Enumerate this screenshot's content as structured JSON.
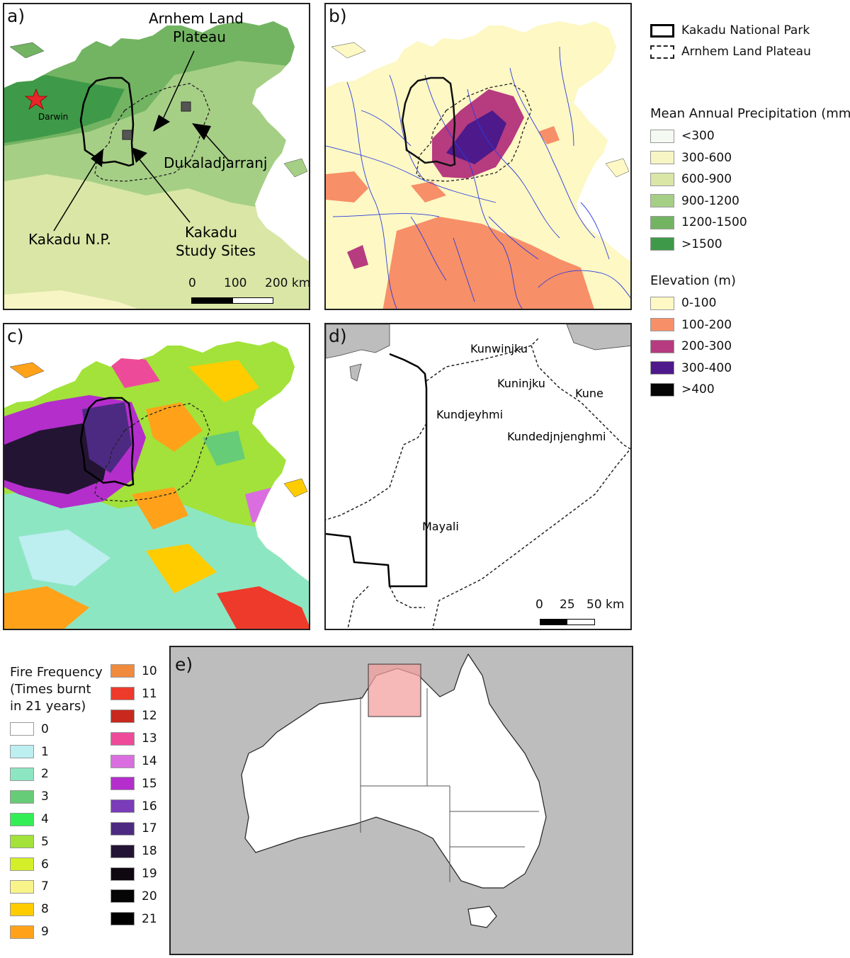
{
  "panels": {
    "a": {
      "label": "a)",
      "annotations": {
        "darwin": "Darwin",
        "arnhem_line1": "Arnhem Land",
        "arnhem_line2": "Plateau",
        "dukaladjarranj": "Dukaladjarranj",
        "kakadu_np": "Kakadu N.P.",
        "study_line1": "Kakadu",
        "study_line2": "Study Sites"
      },
      "scale": {
        "t0": "0",
        "t1": "100",
        "t2": "200 km"
      }
    },
    "b": {
      "label": "b)"
    },
    "c": {
      "label": "c)"
    },
    "d": {
      "label": "d)",
      "annotations": {
        "kunwinjku": "Kunwinjku",
        "kuninjku": "Kuninjku",
        "kune": "Kune",
        "kundjeyhmi": "Kundjeyhmi",
        "kundedjnjenghmi": "Kundedjnjenghmi",
        "mayali": "Mayali"
      },
      "scale": {
        "t0": "0",
        "t1": "25",
        "t2": "50 km"
      }
    },
    "e": {
      "label": "e)"
    }
  },
  "legend_boundaries": {
    "items": [
      {
        "label": "Kakadu National Park",
        "style": "solid"
      },
      {
        "label": "Arnhem Land Plateau",
        "style": "dashed"
      }
    ]
  },
  "legend_precip": {
    "title": "Mean Annual Precipitation (mm)",
    "items": [
      {
        "label": "<300",
        "color": "#f4f9f1"
      },
      {
        "label": "300-600",
        "color": "#f7f5c4"
      },
      {
        "label": "600-900",
        "color": "#d9e6a6"
      },
      {
        "label": "900-1200",
        "color": "#a6cf86"
      },
      {
        "label": "1200-1500",
        "color": "#73b463"
      },
      {
        "label": ">1500",
        "color": "#3e9a48"
      }
    ]
  },
  "legend_elev": {
    "title": "Elevation (m)",
    "items": [
      {
        "label": "0-100",
        "color": "#fdf8c4"
      },
      {
        "label": "100-200",
        "color": "#f78f68"
      },
      {
        "label": "200-300",
        "color": "#b63b7f"
      },
      {
        "label": "300-400",
        "color": "#4e198a"
      },
      {
        "label": ">400",
        "color": "#050505"
      }
    ]
  },
  "legend_fire": {
    "title_line1": "Fire Frequency",
    "title_line2": "(Times burnt",
    "title_line3": "in 21 years)",
    "col1": [
      {
        "label": "0",
        "color": "#ffffff"
      },
      {
        "label": "1",
        "color": "#bdeef0"
      },
      {
        "label": "2",
        "color": "#8de6c2"
      },
      {
        "label": "3",
        "color": "#66cc77"
      },
      {
        "label": "4",
        "color": "#33ee55"
      },
      {
        "label": "5",
        "color": "#a2e23a"
      },
      {
        "label": "6",
        "color": "#d4ef2a"
      },
      {
        "label": "7",
        "color": "#f8f48a"
      },
      {
        "label": "8",
        "color": "#ffcc00"
      },
      {
        "label": "9",
        "color": "#ffa21a"
      }
    ],
    "col2": [
      {
        "label": "10",
        "color": "#f08a3c"
      },
      {
        "label": "11",
        "color": "#ee3a2a"
      },
      {
        "label": "12",
        "color": "#c8281e"
      },
      {
        "label": "13",
        "color": "#ee4a9a"
      },
      {
        "label": "14",
        "color": "#da6ee0"
      },
      {
        "label": "15",
        "color": "#b42ecc"
      },
      {
        "label": "16",
        "color": "#7a3cb8"
      },
      {
        "label": "17",
        "color": "#4c2a82"
      },
      {
        "label": "18",
        "color": "#231434"
      },
      {
        "label": "19",
        "color": "#100810"
      },
      {
        "label": "20",
        "color": "#050505"
      },
      {
        "label": "21",
        "color": "#000000"
      }
    ]
  }
}
